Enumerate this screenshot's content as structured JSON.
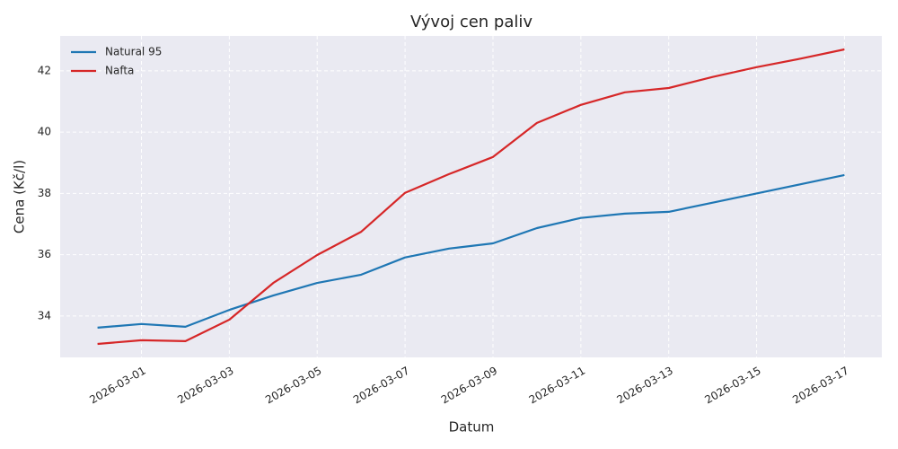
{
  "chart_data": {
    "type": "line",
    "title": "Vývoj cen paliv",
    "x_label": "Datum",
    "y_label": "Cena (Kč/l)",
    "x": [
      "2026-02-28",
      "2026-03-01",
      "2026-03-02",
      "2026-03-03",
      "2026-03-04",
      "2026-03-05",
      "2026-03-06",
      "2026-03-07",
      "2026-03-08",
      "2026-03-09",
      "2026-03-10",
      "2026-03-11",
      "2026-03-12",
      "2026-03-13",
      "2026-03-14",
      "2026-03-15",
      "2026-03-16",
      "2026-03-17"
    ],
    "series": [
      {
        "name": "Natural 95",
        "color": "#1f77b4",
        "values": [
          33.62,
          33.74,
          33.65,
          34.2,
          34.67,
          35.08,
          35.35,
          35.91,
          36.2,
          36.37,
          36.87,
          37.2,
          37.34,
          37.4,
          37.7,
          38.0,
          38.3,
          38.6
        ]
      },
      {
        "name": "Nafta",
        "color": "#d62728",
        "values": [
          33.09,
          33.21,
          33.18,
          33.88,
          35.08,
          35.99,
          36.75,
          38.02,
          38.63,
          39.19,
          40.3,
          40.89,
          41.3,
          41.44,
          41.8,
          42.12,
          42.4,
          42.7
        ]
      }
    ],
    "ylim": [
      32.65,
      43.14
    ],
    "yticks": [
      34,
      36,
      38,
      40,
      42
    ],
    "xticks": [
      "2026-03-01",
      "2026-03-03",
      "2026-03-05",
      "2026-03-07",
      "2026-03-09",
      "2026-03-11",
      "2026-03-13",
      "2026-03-15",
      "2026-03-17"
    ],
    "grid": true,
    "legend": "upper-left"
  }
}
